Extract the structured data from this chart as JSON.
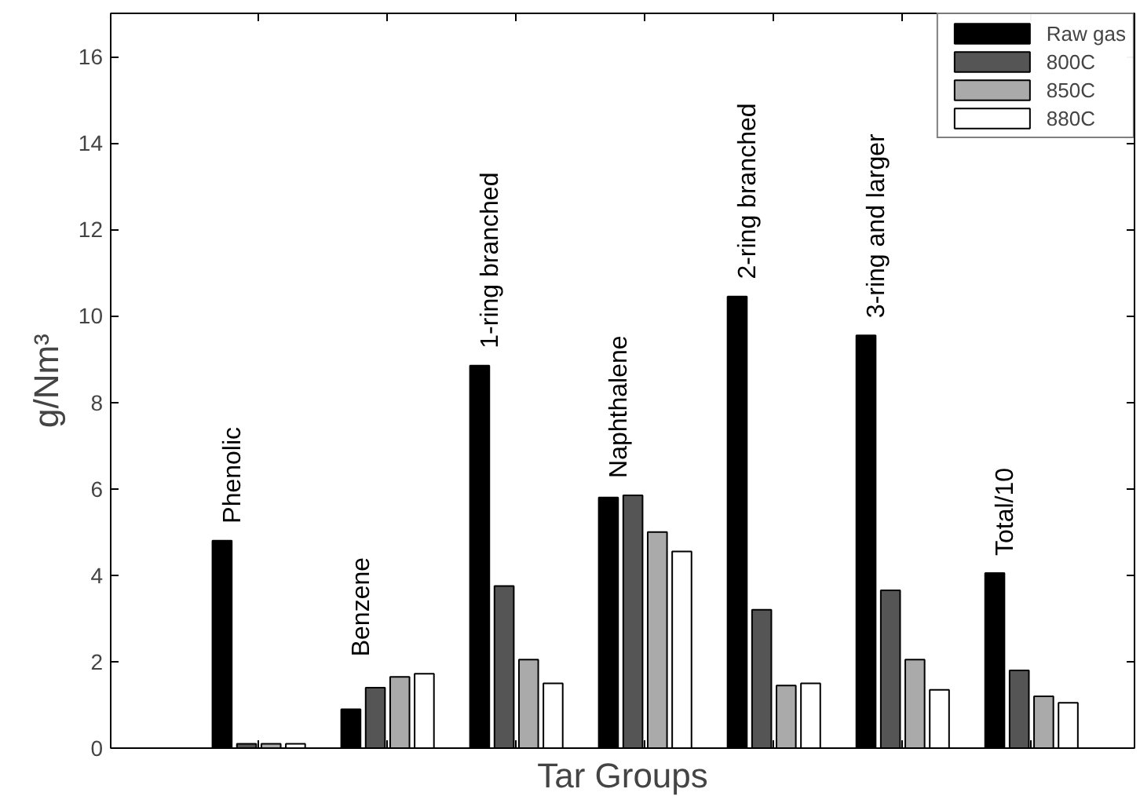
{
  "chart_data": {
    "type": "bar",
    "xlabel": "Tar Groups",
    "ylabel": "g/Nm³",
    "categories": [
      "Phenolic",
      "Benzene",
      "1-ring branched",
      "Naphthalene",
      "2-ring branched",
      "3-ring and larger",
      "Total/10"
    ],
    "series": [
      {
        "name": "Raw gas",
        "color": "#000000",
        "values": [
          4.8,
          0.9,
          8.85,
          5.8,
          10.45,
          9.55,
          4.05
        ]
      },
      {
        "name": "800C",
        "color": "#555555",
        "values": [
          0.1,
          1.4,
          3.75,
          5.85,
          3.2,
          3.65,
          1.8
        ]
      },
      {
        "name": "850C",
        "color": "#aaaaaa",
        "values": [
          0.1,
          1.65,
          2.05,
          5.0,
          1.45,
          2.05,
          1.2
        ]
      },
      {
        "name": "880C",
        "color": "#ffffff",
        "values": [
          0.1,
          1.72,
          1.5,
          4.55,
          1.5,
          1.35,
          1.05
        ]
      }
    ],
    "ylim": [
      0,
      17
    ],
    "yticks": [
      0,
      2,
      4,
      6,
      8,
      10,
      12,
      14,
      16
    ],
    "tick_labels": "y",
    "grid": false,
    "legend": "top right"
  }
}
